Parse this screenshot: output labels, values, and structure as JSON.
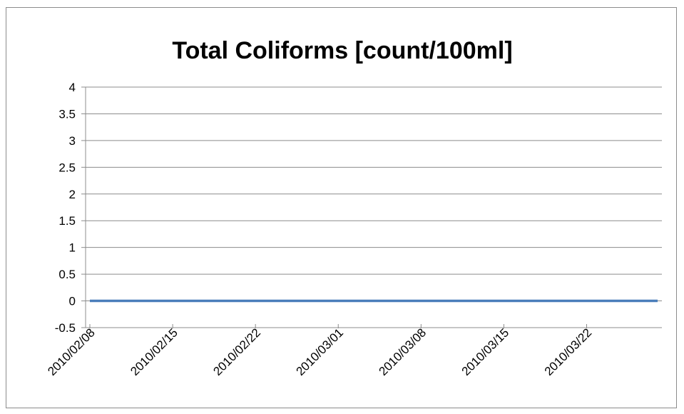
{
  "chart_data": {
    "type": "line",
    "title": "Total Coliforms [count/100ml]",
    "xlabel": "",
    "ylabel": "",
    "x_ticks": [
      "2010/02/08",
      "2010/02/15",
      "2010/02/22",
      "2010/03/01",
      "2010/03/08",
      "2010/03/15",
      "2010/03/22"
    ],
    "xlim": [
      "2010/02/08",
      "2010/03/28"
    ],
    "ylim": [
      -0.5,
      4
    ],
    "y_ticks": [
      "-0.5",
      "0",
      "0.5",
      "1",
      "1.5",
      "2",
      "2.5",
      "3",
      "3.5",
      "4"
    ],
    "grid": true,
    "legend": "none",
    "series": [
      {
        "color": "#4a7ebb",
        "x": [
          "2010/02/08",
          "2010/03/28"
        ],
        "y": [
          0,
          0
        ]
      }
    ]
  }
}
